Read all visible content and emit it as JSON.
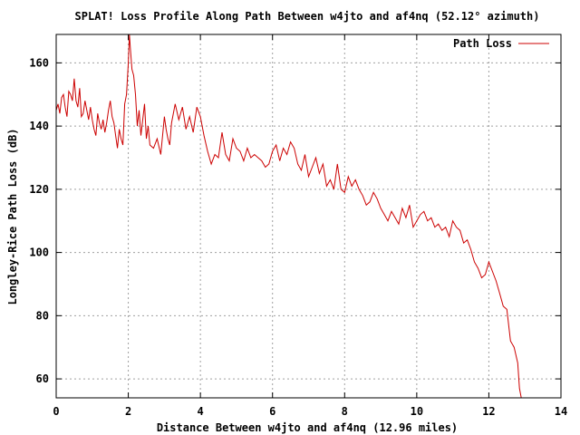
{
  "chart_data": {
    "type": "line",
    "title": "SPLAT! Loss Profile Along Path Between w4jto and af4nq (52.12° azimuth)",
    "xlabel": "Distance Between w4jto and af4nq (12.96 miles)",
    "ylabel": "Longley-Rice Path Loss (dB)",
    "xlim": [
      0,
      14
    ],
    "ylim": [
      54,
      169
    ],
    "xticks": [
      0,
      2,
      4,
      6,
      8,
      10,
      12,
      14
    ],
    "yticks": [
      60,
      80,
      100,
      120,
      140,
      160
    ],
    "grid": true,
    "legend_position": "top-right",
    "series": [
      {
        "name": "Path Loss",
        "color": "#cc0000",
        "x": [
          0.0,
          0.05,
          0.1,
          0.15,
          0.2,
          0.25,
          0.3,
          0.35,
          0.4,
          0.45,
          0.5,
          0.55,
          0.6,
          0.65,
          0.7,
          0.75,
          0.8,
          0.85,
          0.9,
          0.95,
          1.0,
          1.05,
          1.1,
          1.15,
          1.2,
          1.25,
          1.3,
          1.35,
          1.4,
          1.45,
          1.5,
          1.55,
          1.6,
          1.65,
          1.7,
          1.75,
          1.8,
          1.85,
          1.9,
          1.95,
          2.0,
          2.03,
          2.06,
          2.1,
          2.15,
          2.2,
          2.25,
          2.3,
          2.35,
          2.4,
          2.45,
          2.5,
          2.55,
          2.6,
          2.7,
          2.8,
          2.9,
          3.0,
          3.05,
          3.1,
          3.15,
          3.2,
          3.3,
          3.4,
          3.5,
          3.6,
          3.7,
          3.8,
          3.9,
          4.0,
          4.1,
          4.2,
          4.3,
          4.4,
          4.5,
          4.6,
          4.7,
          4.8,
          4.9,
          5.0,
          5.1,
          5.2,
          5.3,
          5.4,
          5.5,
          5.6,
          5.7,
          5.8,
          5.9,
          6.0,
          6.1,
          6.2,
          6.3,
          6.4,
          6.5,
          6.6,
          6.7,
          6.8,
          6.9,
          7.0,
          7.1,
          7.2,
          7.3,
          7.4,
          7.5,
          7.6,
          7.7,
          7.8,
          7.9,
          8.0,
          8.1,
          8.2,
          8.3,
          8.4,
          8.5,
          8.6,
          8.7,
          8.8,
          8.9,
          9.0,
          9.1,
          9.2,
          9.3,
          9.4,
          9.5,
          9.6,
          9.7,
          9.8,
          9.9,
          10.0,
          10.1,
          10.2,
          10.3,
          10.4,
          10.5,
          10.6,
          10.7,
          10.8,
          10.9,
          11.0,
          11.1,
          11.2,
          11.3,
          11.4,
          11.5,
          11.6,
          11.7,
          11.8,
          11.9,
          12.0,
          12.1,
          12.2,
          12.3,
          12.4,
          12.5,
          12.6,
          12.7,
          12.8,
          12.85,
          12.9
        ],
        "values": [
          145,
          147,
          144,
          149,
          150,
          146,
          143,
          151,
          150,
          148,
          155,
          148,
          146,
          152,
          143,
          144,
          148,
          145,
          142,
          146,
          142,
          139,
          137,
          144,
          141,
          139,
          142,
          138,
          141,
          145,
          148,
          143,
          141,
          137,
          133,
          139,
          136,
          134,
          147,
          150,
          160,
          169,
          164,
          158,
          156,
          150,
          140,
          145,
          137,
          142,
          147,
          136,
          140,
          134,
          133,
          136,
          131,
          143,
          139,
          136,
          134,
          141,
          147,
          142,
          146,
          139,
          143,
          138,
          146,
          143,
          137,
          132,
          128,
          131,
          130,
          138,
          131,
          129,
          136,
          133,
          132,
          129,
          133,
          130,
          131,
          130,
          129,
          127,
          128,
          132,
          134,
          129,
          133,
          131,
          135,
          133,
          128,
          126,
          131,
          124,
          127,
          130,
          125,
          128,
          121,
          123,
          120,
          128,
          120,
          119,
          124,
          121,
          123,
          120,
          118,
          115,
          116,
          119,
          117,
          114,
          112,
          110,
          113,
          111,
          109,
          114,
          111,
          115,
          108,
          110,
          112,
          113,
          110,
          111,
          108,
          109,
          107,
          108,
          105,
          110,
          108,
          107,
          103,
          104,
          101,
          97,
          95,
          92,
          93,
          97,
          94,
          91,
          87,
          83,
          82,
          72,
          70,
          65,
          57,
          54
        ]
      }
    ]
  }
}
